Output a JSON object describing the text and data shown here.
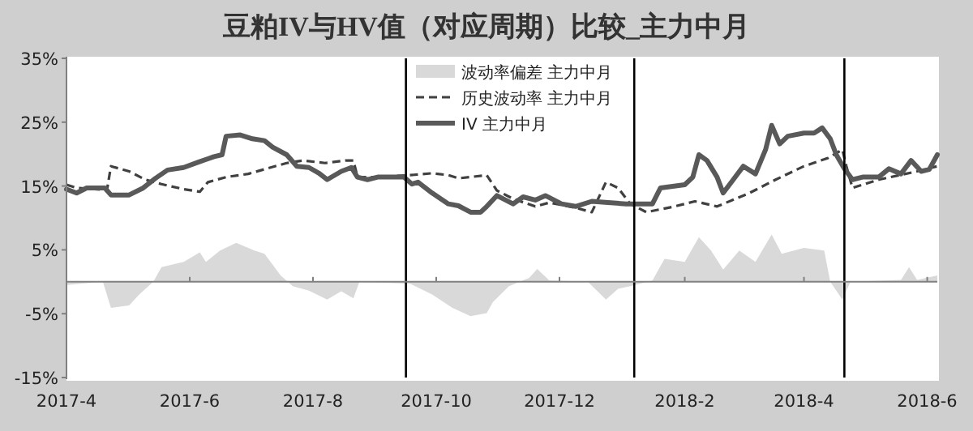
{
  "chart_data": {
    "type": "line",
    "title": "豆粕IV与HV值（对应周期）比较_主力中月",
    "xlim": [
      "2017-04-01",
      "2018-06-06"
    ],
    "xticks": [
      {
        "value": "2017-04-01",
        "label": "2017-4"
      },
      {
        "value": "2017-06-01",
        "label": "2017-6"
      },
      {
        "value": "2017-08-01",
        "label": "2017-8"
      },
      {
        "value": "2017-10-01",
        "label": "2017-10"
      },
      {
        "value": "2017-12-01",
        "label": "2017-12"
      },
      {
        "value": "2018-02-01",
        "label": "2018-2"
      },
      {
        "value": "2018-04-01",
        "label": "2018-4"
      },
      {
        "value": "2018-06-01",
        "label": "2018-6"
      }
    ],
    "ylim": [
      -15,
      35
    ],
    "yticks": [
      {
        "value": -15,
        "label": "-15%"
      },
      {
        "value": -5,
        "label": "-5%"
      },
      {
        "value": 5,
        "label": "5%"
      },
      {
        "value": 15,
        "label": "15%"
      },
      {
        "value": 25,
        "label": "25%"
      },
      {
        "value": 35,
        "label": "35%"
      }
    ],
    "grid": false,
    "legend": "top",
    "series": [
      {
        "name": "波动率偏差 主力中月",
        "type": "area",
        "color": "#d9d9d9",
        "x": [
          "2017-04-01",
          "2017-04-19",
          "2017-04-23",
          "2017-05-02",
          "2017-05-07",
          "2017-05-14",
          "2017-05-18",
          "2017-05-29",
          "2017-06-06",
          "2017-06-09",
          "2017-06-16",
          "2017-06-24",
          "2017-07-03",
          "2017-07-08",
          "2017-07-16",
          "2017-07-22",
          "2017-07-30",
          "2017-08-08",
          "2017-08-15",
          "2017-08-21",
          "2017-08-24",
          "2017-09-18",
          "2017-09-29",
          "2017-10-09",
          "2017-10-18",
          "2017-10-26",
          "2017-10-29",
          "2017-11-06",
          "2017-11-16",
          "2017-11-20",
          "2017-11-26",
          "2017-12-15",
          "2017-12-24",
          "2017-12-30",
          "2018-01-05",
          "2018-01-16",
          "2018-01-22",
          "2018-02-01",
          "2018-02-08",
          "2018-02-14",
          "2018-02-20",
          "2018-02-28",
          "2018-03-08",
          "2018-03-16",
          "2018-03-21",
          "2018-04-01",
          "2018-04-11",
          "2018-04-14",
          "2018-04-20",
          "2018-04-24",
          "2018-05-19",
          "2018-05-23",
          "2018-05-27",
          "2018-06-06"
        ],
        "values": [
          -0.5,
          0,
          -4.1,
          -3.7,
          -2,
          0,
          2.3,
          3.1,
          4.6,
          3.1,
          4.9,
          6.1,
          4.9,
          4.4,
          1,
          -0.7,
          -1.4,
          -2.8,
          -1.5,
          -2.6,
          0,
          -0.3,
          -2,
          -4.1,
          -5.4,
          -4.9,
          -3.2,
          -0.7,
          0.6,
          2,
          0.2,
          0,
          -2.8,
          -1.1,
          -0.7,
          0.2,
          3.6,
          3.1,
          7,
          4.9,
          1.9,
          4.9,
          3.1,
          7.4,
          4.4,
          5.3,
          4.9,
          0,
          -2.8,
          0,
          0.3,
          2.3,
          0.3,
          1
        ]
      },
      {
        "name": "历史波动率 主力中月",
        "line_style": "dashed",
        "color": "#404040",
        "x": [
          "2017-04-01",
          "2017-04-06",
          "2017-04-16",
          "2017-04-21",
          "2017-04-23",
          "2017-05-02",
          "2017-05-10",
          "2017-05-18",
          "2017-05-29",
          "2017-06-06",
          "2017-06-10",
          "2017-06-19",
          "2017-06-30",
          "2017-07-11",
          "2017-07-19",
          "2017-07-27",
          "2017-08-07",
          "2017-08-17",
          "2017-08-21",
          "2017-08-23",
          "2017-09-02",
          "2017-09-18",
          "2017-09-29",
          "2017-10-07",
          "2017-10-12",
          "2017-10-26",
          "2017-10-31",
          "2017-11-08",
          "2017-11-19",
          "2017-11-26",
          "2017-12-09",
          "2017-12-17",
          "2017-12-24",
          "2017-12-30",
          "2018-01-05",
          "2018-01-13",
          "2018-01-27",
          "2018-02-06",
          "2018-02-17",
          "2018-03-05",
          "2018-03-18",
          "2018-04-01",
          "2018-04-13",
          "2018-04-20",
          "2018-04-22",
          "2018-04-25",
          "2018-05-08",
          "2018-05-27",
          "2018-06-06"
        ],
        "values": [
          15.2,
          14.7,
          14.5,
          14.3,
          18.1,
          17.3,
          16,
          15.3,
          14.5,
          14.1,
          15.6,
          16.4,
          16.9,
          17.9,
          18.6,
          19,
          18.6,
          19,
          19,
          16.4,
          16.4,
          16.7,
          17,
          16.7,
          16.2,
          16.7,
          14.3,
          13,
          11.8,
          12.4,
          11.6,
          10.9,
          15.6,
          14.7,
          12.2,
          10.9,
          11.8,
          12.6,
          11.8,
          13.9,
          16,
          18.1,
          19.4,
          20.7,
          18.1,
          14.7,
          16,
          17.3,
          18.1
        ]
      },
      {
        "name": "IV 主力中月",
        "line_style": "solid",
        "color": "#595959",
        "x": [
          "2017-04-01",
          "2017-04-06",
          "2017-04-11",
          "2017-04-20",
          "2017-04-23",
          "2017-05-02",
          "2017-05-09",
          "2017-05-15",
          "2017-05-21",
          "2017-05-29",
          "2017-06-05",
          "2017-06-13",
          "2017-06-17",
          "2017-06-19",
          "2017-06-26",
          "2017-07-02",
          "2017-07-08",
          "2017-07-12",
          "2017-07-19",
          "2017-07-24",
          "2017-07-30",
          "2017-08-04",
          "2017-08-08",
          "2017-08-15",
          "2017-08-20",
          "2017-08-23",
          "2017-08-28",
          "2017-09-02",
          "2017-09-15",
          "2017-09-19",
          "2017-09-22",
          "2017-09-29",
          "2017-10-07",
          "2017-10-12",
          "2017-10-18",
          "2017-10-23",
          "2017-10-26",
          "2017-10-31",
          "2017-11-08",
          "2017-11-13",
          "2017-11-19",
          "2017-11-24",
          "2017-12-02",
          "2017-12-09",
          "2017-12-17",
          "2017-12-25",
          "2018-01-03",
          "2018-01-16",
          "2018-01-20",
          "2018-02-01",
          "2018-02-05",
          "2018-02-08",
          "2018-02-12",
          "2018-02-17",
          "2018-02-20",
          "2018-02-25",
          "2018-03-02",
          "2018-03-08",
          "2018-03-13",
          "2018-03-16",
          "2018-03-20",
          "2018-03-24",
          "2018-04-01",
          "2018-04-06",
          "2018-04-10",
          "2018-04-14",
          "2018-04-17",
          "2018-04-21",
          "2018-04-25",
          "2018-04-30",
          "2018-05-08",
          "2018-05-13",
          "2018-05-19",
          "2018-05-24",
          "2018-05-29",
          "2018-06-02",
          "2018-06-06"
        ],
        "values": [
          14.5,
          13.9,
          14.7,
          14.7,
          13.6,
          13.6,
          14.7,
          16.2,
          17.5,
          17.9,
          18.7,
          19.6,
          19.9,
          22.8,
          23,
          22.4,
          22.1,
          21.1,
          19.9,
          18.1,
          17.9,
          17,
          16,
          17.3,
          17.9,
          16.4,
          16,
          16.4,
          16.4,
          15.3,
          15.6,
          13.9,
          12.2,
          11.9,
          10.9,
          10.9,
          11.8,
          13.5,
          12.2,
          13.3,
          12.8,
          13.5,
          12.2,
          11.8,
          12.6,
          12.4,
          12.2,
          12.2,
          14.7,
          15.2,
          16.4,
          19.9,
          19,
          16.4,
          13.9,
          16,
          18.1,
          16.9,
          20.7,
          24.5,
          21.6,
          22.8,
          23.3,
          23.3,
          24.1,
          22.4,
          19.9,
          17.7,
          16,
          16.4,
          16.4,
          17.7,
          16.9,
          19,
          17.3,
          17.6,
          19.9
        ]
      }
    ],
    "ref_lines": [
      {
        "axis": "x",
        "value": "2017-09-16",
        "color": "#000000"
      },
      {
        "axis": "x",
        "value": "2018-01-07",
        "color": "#000000"
      },
      {
        "axis": "x",
        "value": "2018-04-21",
        "color": "#000000"
      }
    ]
  }
}
